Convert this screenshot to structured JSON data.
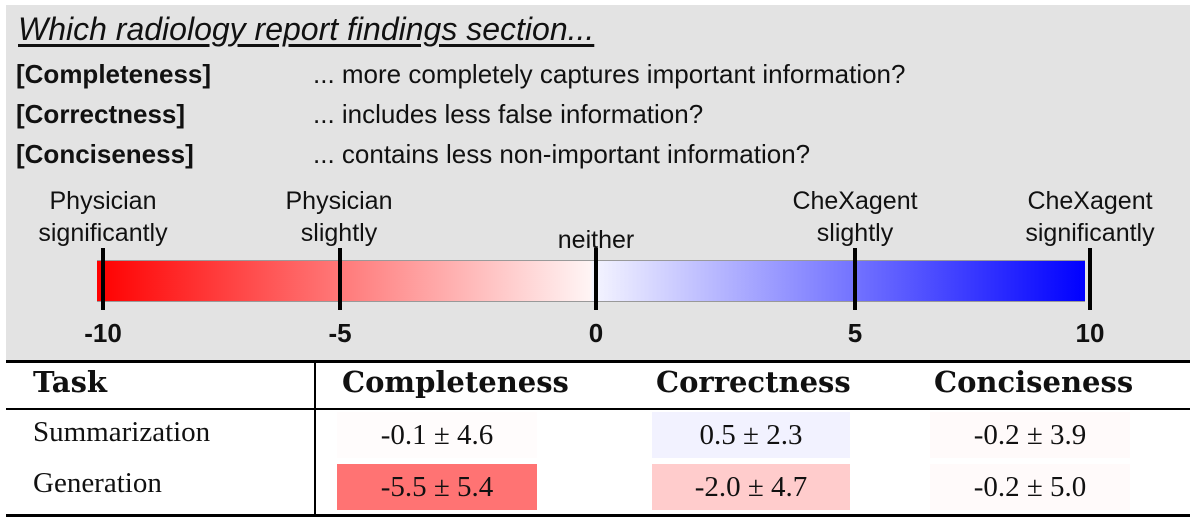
{
  "question": {
    "title": "Which radiology report findings section...",
    "criteria": [
      {
        "label": "[Completeness]",
        "question": "... more completely captures important information?"
      },
      {
        "label": "[Correctness]",
        "question": "... includes less false information?"
      },
      {
        "label": "[Conciseness]",
        "question": "... contains less non-important information?"
      }
    ]
  },
  "scale": {
    "labels": [
      {
        "line1": "Physician",
        "line2": "significantly",
        "value": -10
      },
      {
        "line1": "Physician",
        "line2": "slightly",
        "value": -5
      },
      {
        "line1": "",
        "line2": "neither",
        "value": 0
      },
      {
        "line1": "CheXagent",
        "line2": "slightly",
        "value": 5
      },
      {
        "line1": "CheXagent",
        "line2": "significantly",
        "value": 10
      }
    ],
    "ticks": [
      "-10",
      "-5",
      "0",
      "5",
      "10"
    ],
    "tick_values": [
      -10,
      -5,
      0,
      5,
      10
    ],
    "colors": {
      "negative": "#ff0000",
      "neutral": "#ffffff",
      "positive": "#0000ff"
    }
  },
  "table": {
    "headers": [
      "Task",
      "Completeness",
      "Correctness",
      "Conciseness"
    ],
    "rows": [
      {
        "task": "Summarization",
        "cells": [
          {
            "text": "-0.1 ± 4.6",
            "value": -0.1
          },
          {
            "text": "0.5 ± 2.3",
            "value": 0.5
          },
          {
            "text": "-0.2 ± 3.9",
            "value": -0.2
          }
        ]
      },
      {
        "task": "Generation",
        "cells": [
          {
            "text": "-5.5 ± 5.4",
            "value": -5.5
          },
          {
            "text": "-2.0 ± 4.7",
            "value": -2.0
          },
          {
            "text": "-0.2 ± 5.0",
            "value": -0.2
          }
        ]
      }
    ]
  }
}
